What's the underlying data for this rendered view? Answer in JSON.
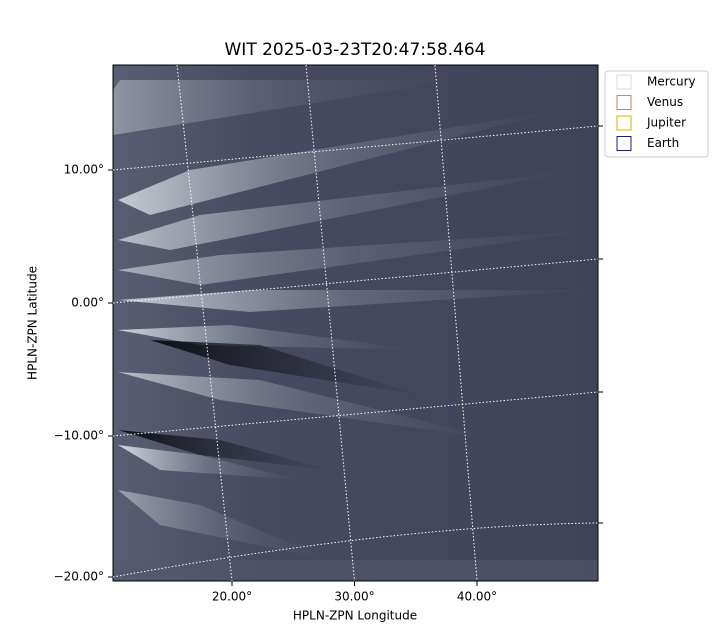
{
  "chart_data": {
    "type": "image",
    "title": "WIT 2025-03-23T20:47:58.464",
    "x_label": "HPLN-ZPN Longitude",
    "y_label": "HPLN-ZPN Latitude",
    "xticks": [
      {
        "value": 20,
        "label": "20.00°"
      },
      {
        "value": 30,
        "label": "30.00°"
      },
      {
        "value": 40,
        "label": "40.00°"
      }
    ],
    "yticks": [
      {
        "value": 10,
        "label": "10.00°"
      },
      {
        "value": 0,
        "label": "0.00°"
      },
      {
        "value": -10,
        "label": "−10.00°"
      },
      {
        "value": -20,
        "label": "−20.00°"
      }
    ],
    "grid": true,
    "legend": [
      {
        "name": "Mercury",
        "color": "#d9d9d9"
      },
      {
        "name": "Venus",
        "color": "#e07b39"
      },
      {
        "name": "Jupiter",
        "color": "#e0a800"
      },
      {
        "name": "Earth",
        "color": "#1c1c80"
      }
    ]
  }
}
